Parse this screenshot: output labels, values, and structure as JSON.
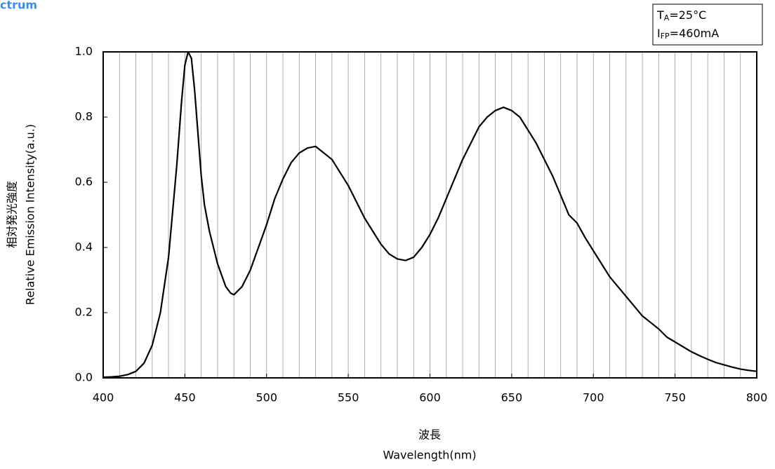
{
  "chart_data": {
    "type": "line",
    "title": "ctrum",
    "xlabel": [
      "波長",
      "Wavelength(nm)"
    ],
    "ylabel": [
      "相対発光強度",
      "Relative Emission Intensity(a.u.)"
    ],
    "conditions": [
      {
        "symbol": "T",
        "subscript": "A",
        "value": "=25°C"
      },
      {
        "symbol": "I",
        "subscript": "FP",
        "value": "=460mA"
      }
    ],
    "x": [
      400,
      405,
      410,
      415,
      420,
      425,
      430,
      435,
      440,
      445,
      448,
      450,
      452,
      454,
      456,
      458,
      460,
      462,
      465,
      470,
      475,
      478,
      480,
      485,
      490,
      495,
      500,
      505,
      510,
      515,
      520,
      525,
      530,
      535,
      540,
      545,
      550,
      555,
      560,
      565,
      570,
      575,
      580,
      585,
      590,
      595,
      600,
      605,
      610,
      615,
      620,
      625,
      630,
      635,
      640,
      645,
      650,
      655,
      660,
      665,
      670,
      675,
      680,
      685,
      690,
      695,
      700,
      705,
      710,
      715,
      720,
      725,
      730,
      735,
      740,
      745,
      750,
      755,
      760,
      765,
      770,
      775,
      780,
      785,
      790,
      795,
      800
    ],
    "series": [
      {
        "name": "spectrum",
        "color": "#000000",
        "values": [
          0.002,
          0.003,
          0.005,
          0.01,
          0.02,
          0.045,
          0.1,
          0.2,
          0.37,
          0.65,
          0.85,
          0.96,
          1.0,
          0.98,
          0.88,
          0.75,
          0.62,
          0.53,
          0.45,
          0.35,
          0.28,
          0.26,
          0.255,
          0.28,
          0.33,
          0.4,
          0.47,
          0.55,
          0.61,
          0.66,
          0.69,
          0.705,
          0.71,
          0.69,
          0.67,
          0.63,
          0.59,
          0.54,
          0.49,
          0.45,
          0.41,
          0.38,
          0.365,
          0.36,
          0.37,
          0.4,
          0.44,
          0.49,
          0.55,
          0.61,
          0.67,
          0.72,
          0.77,
          0.8,
          0.82,
          0.83,
          0.82,
          0.8,
          0.76,
          0.72,
          0.67,
          0.62,
          0.56,
          0.5,
          0.475,
          0.43,
          0.39,
          0.35,
          0.31,
          0.28,
          0.25,
          0.22,
          0.19,
          0.17,
          0.15,
          0.125,
          0.11,
          0.095,
          0.08,
          0.068,
          0.057,
          0.047,
          0.04,
          0.033,
          0.027,
          0.023,
          0.02
        ]
      }
    ],
    "xlim": [
      400,
      800
    ],
    "ylim": [
      0,
      1
    ],
    "xticks": [
      400,
      450,
      500,
      550,
      600,
      650,
      700,
      750,
      800
    ],
    "yticks": [
      {
        "value": 0,
        "label": "0.0"
      },
      0.2,
      0.4,
      0.6,
      0.8,
      {
        "value": 1,
        "label": "1.0"
      }
    ],
    "xgrid": [
      410,
      420,
      430,
      440,
      450,
      460,
      470,
      480,
      490,
      500,
      510,
      520,
      530,
      540,
      550,
      560,
      570,
      580,
      590,
      600,
      610,
      620,
      630,
      640,
      650,
      660,
      670,
      680,
      690,
      700,
      710,
      720,
      730,
      740,
      750,
      760,
      770,
      780,
      790
    ],
    "title_color": "#3b8ee8"
  }
}
